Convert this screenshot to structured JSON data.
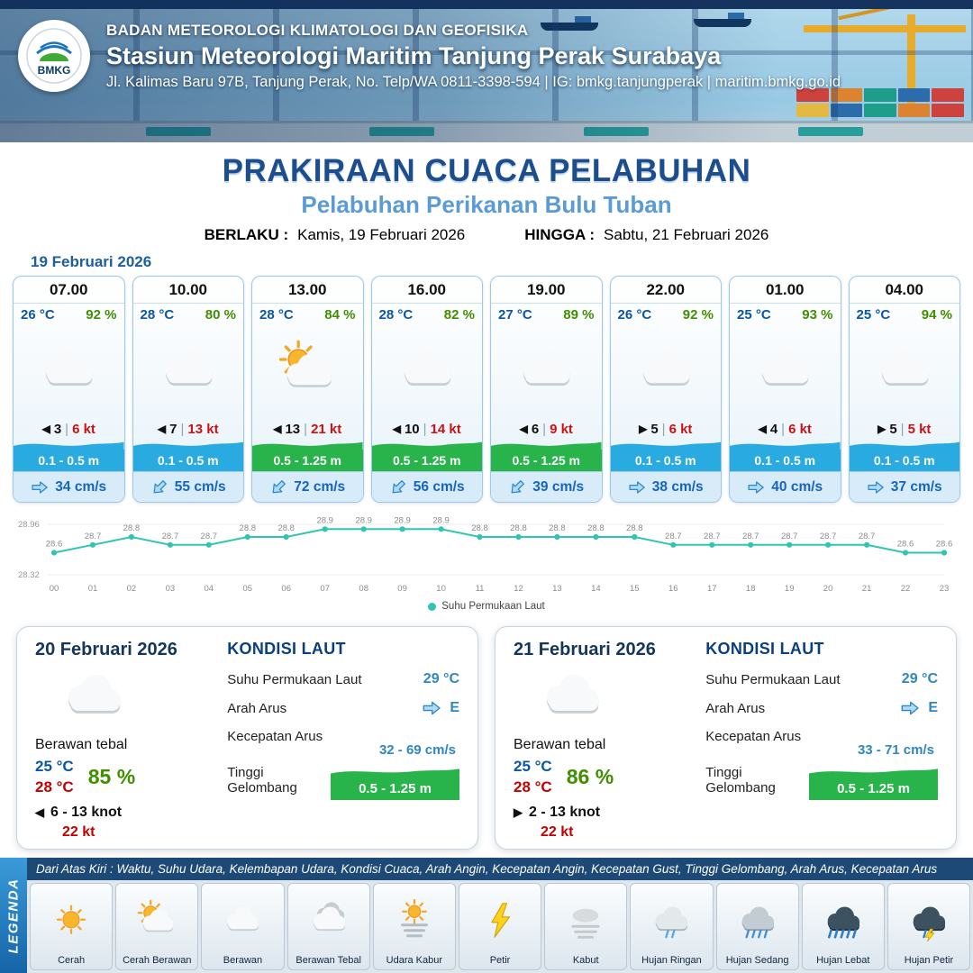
{
  "header": {
    "logo_text": "BMKG",
    "agency": "BADAN METEOROLOGI KLIMATOLOGI DAN GEOFISIKA",
    "station": "Stasiun Meteorologi Maritim Tanjung Perak Surabaya",
    "address": "Jl. Kalimas Baru 97B, Tanjung Perak, No. Telp/WA 0811-3398-594 | IG: bmkg.tanjungperak | maritim.bmkg.go.id"
  },
  "title": {
    "main": "PRAKIRAAN CUACA PELABUHAN",
    "subtitle": "Pelabuhan Perikanan Bulu Tuban",
    "berlaku_label": "BERLAKU :",
    "berlaku_value": "Kamis, 19 Februari 2026",
    "hingga_label": "HINGGA :",
    "hingga_value": "Sabtu, 21 Februari 2026"
  },
  "colors": {
    "wave_blue": "#29abe2",
    "wave_green": "#28b44b",
    "sst_line": "#2fc5b2",
    "accent_navy": "#1c4e8e",
    "subtitle_blue": "#5b9bd5"
  },
  "day1": {
    "date": "19 Februari 2026",
    "hours": [
      {
        "time": "07.00",
        "temp": "26 °C",
        "humidity": "92 %",
        "icon": "cloud",
        "wind_dir": "W",
        "wind_speed": "3",
        "gust": "6 kt",
        "wave": "0.1 - 0.5 m",
        "wave_level": "low",
        "current_dir": "E",
        "current": "34 cm/s"
      },
      {
        "time": "10.00",
        "temp": "28 °C",
        "humidity": "80 %",
        "icon": "cloud",
        "wind_dir": "W",
        "wind_speed": "7",
        "gust": "13 kt",
        "wave": "0.1 - 0.5 m",
        "wave_level": "low",
        "current_dir": "SW",
        "current": "55 cm/s"
      },
      {
        "time": "13.00",
        "temp": "28 °C",
        "humidity": "84 %",
        "icon": "sun-cloud",
        "wind_dir": "W",
        "wind_speed": "13",
        "gust": "21 kt",
        "wave": "0.5 - 1.25 m",
        "wave_level": "mid",
        "current_dir": "SW",
        "current": "72 cm/s"
      },
      {
        "time": "16.00",
        "temp": "28 °C",
        "humidity": "82 %",
        "icon": "cloud",
        "wind_dir": "W",
        "wind_speed": "10",
        "gust": "14 kt",
        "wave": "0.5 - 1.25 m",
        "wave_level": "mid",
        "current_dir": "SW",
        "current": "56 cm/s"
      },
      {
        "time": "19.00",
        "temp": "27 °C",
        "humidity": "89 %",
        "icon": "cloud",
        "wind_dir": "W",
        "wind_speed": "6",
        "gust": "9 kt",
        "wave": "0.5 - 1.25 m",
        "wave_level": "mid",
        "current_dir": "SW",
        "current": "39 cm/s"
      },
      {
        "time": "22.00",
        "temp": "26 °C",
        "humidity": "92 %",
        "icon": "cloud",
        "wind_dir": "E",
        "wind_speed": "5",
        "gust": "6 kt",
        "wave": "0.1 - 0.5 m",
        "wave_level": "low",
        "current_dir": "E",
        "current": "38 cm/s"
      },
      {
        "time": "01.00",
        "temp": "25 °C",
        "humidity": "93 %",
        "icon": "cloud",
        "wind_dir": "W",
        "wind_speed": "4",
        "gust": "6 kt",
        "wave": "0.1 - 0.5 m",
        "wave_level": "low",
        "current_dir": "E",
        "current": "40 cm/s"
      },
      {
        "time": "04.00",
        "temp": "25 °C",
        "humidity": "94 %",
        "icon": "cloud",
        "wind_dir": "E",
        "wind_speed": "5",
        "gust": "5 kt",
        "wave": "0.1 - 0.5 m",
        "wave_level": "low",
        "current_dir": "E",
        "current": "37 cm/s"
      }
    ]
  },
  "chart_data": {
    "type": "line",
    "series_name": "Suhu Permukaan Laut",
    "x": [
      "00",
      "01",
      "02",
      "03",
      "04",
      "05",
      "06",
      "07",
      "08",
      "09",
      "10",
      "11",
      "12",
      "13",
      "14",
      "15",
      "16",
      "17",
      "18",
      "19",
      "20",
      "21",
      "22",
      "23"
    ],
    "values": [
      28.6,
      28.7,
      28.8,
      28.7,
      28.7,
      28.8,
      28.8,
      28.9,
      28.9,
      28.9,
      28.9,
      28.8,
      28.8,
      28.8,
      28.8,
      28.8,
      28.7,
      28.7,
      28.7,
      28.7,
      28.7,
      28.7,
      28.6,
      28.6
    ],
    "ylim": [
      28.32,
      28.96
    ],
    "line_color": "#2fc5b2",
    "grid": false,
    "legend_position": "bottom"
  },
  "daily": [
    {
      "date": "20 Februari 2026",
      "icon": "cloud",
      "condition": "Berawan tebal",
      "temp_min": "25 °C",
      "temp_max": "28 °C",
      "humidity": "85 %",
      "wind_dir": "W",
      "wind_range": "6 - 13 knot",
      "gust": "22 kt",
      "sea_title": "KONDISI LAUT",
      "sst_label": "Suhu Permukaan Laut",
      "sst": "29 °C",
      "current_dir_label": "Arah Arus",
      "current_dir": "E",
      "current_speed_label": "Kecepatan Arus",
      "current_speed": "32 - 69 cm/s",
      "wave_label": "Tinggi Gelombang",
      "wave": "0.5 - 1.25 m"
    },
    {
      "date": "21 Februari 2026",
      "icon": "cloud",
      "condition": "Berawan tebal",
      "temp_min": "25 °C",
      "temp_max": "28 °C",
      "humidity": "86 %",
      "wind_dir": "E",
      "wind_range": "2 - 13 knot",
      "gust": "22 kt",
      "sea_title": "KONDISI LAUT",
      "sst_label": "Suhu Permukaan Laut",
      "sst": "29 °C",
      "current_dir_label": "Arah Arus",
      "current_dir": "E",
      "current_speed_label": "Kecepatan Arus",
      "current_speed": "33 - 71 cm/s",
      "wave_label": "Tinggi Gelombang",
      "wave": "0.5 - 1.25 m"
    }
  ],
  "legend": {
    "vertical_label": "LEGENDA",
    "note": "Dari Atas Kiri : Waktu, Suhu Udara, Kelembapan Udara, Kondisi Cuaca, Arah Angin, Kecepatan Angin, Kecepatan Gust, Tinggi Gelombang, Arah Arus, Kecepatan Arus",
    "items": [
      {
        "icon": "sun",
        "label": "Cerah"
      },
      {
        "icon": "sun-cloud",
        "label": "Cerah Berawan"
      },
      {
        "icon": "cloud",
        "label": "Berawan"
      },
      {
        "icon": "cloud-thick",
        "label": "Berawan Tebal"
      },
      {
        "icon": "haze",
        "label": "Udara Kabur"
      },
      {
        "icon": "lightning",
        "label": "Petir"
      },
      {
        "icon": "fog",
        "label": "Kabut"
      },
      {
        "icon": "rain-light",
        "label": "Hujan Ringan"
      },
      {
        "icon": "rain-moderate",
        "label": "Hujan Sedang"
      },
      {
        "icon": "rain-heavy",
        "label": "Hujan Lebat"
      },
      {
        "icon": "thunderstorm",
        "label": "Hujan Petir"
      }
    ]
  }
}
